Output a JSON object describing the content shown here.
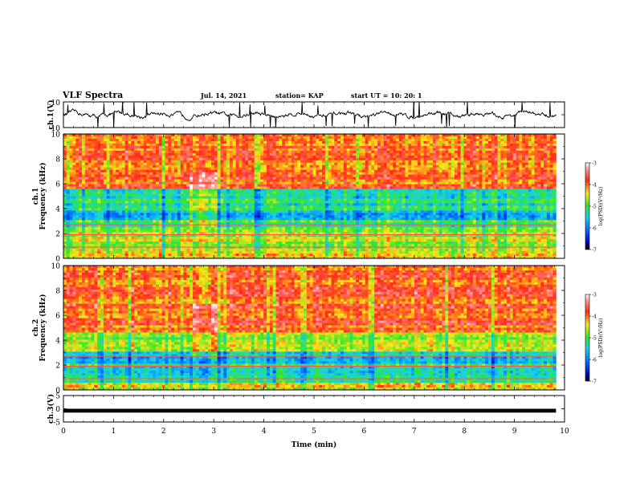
{
  "header": {
    "title": "VLF Spectra",
    "date": "Jul. 14, 2021",
    "station": "station= KAP",
    "start": "start UT = 10: 20: 1"
  },
  "colors": {
    "spectrogram_high": "#ff2a1a",
    "spectrogram_mid": "#ffe61a",
    "spectrogram_low": "#2ee62e",
    "spectrogram_lower": "#1ad2e6",
    "spectrogram_lowest": "#0000c8",
    "axis": "#000000"
  },
  "chart_data": [
    {
      "id": "ch1-waveform",
      "type": "line",
      "ylabel": "ch.1(V)",
      "ylim": [
        -10,
        10
      ],
      "yticks": [
        "10",
        "-10"
      ],
      "xlim": [
        0,
        10
      ],
      "series": [
        {
          "x_range": [
            0,
            9.83
          ],
          "y_mean": 0,
          "y_amplitude": 3.5,
          "spikes_to": 10
        }
      ]
    },
    {
      "id": "ch1-spectrogram",
      "type": "heatmap",
      "ylabel": "ch.1\nFrequency (kHz)",
      "ylim": [
        0,
        10
      ],
      "yticks": [
        "0",
        "2",
        "4",
        "6",
        "8",
        "10"
      ],
      "xlim": [
        0,
        10
      ],
      "data_xlim": [
        0,
        9.83
      ],
      "colorbar": {
        "label": "log(PSD)(V²/Hz)",
        "range": [
          -7,
          -3
        ],
        "ticks": [
          "-3",
          "-4",
          "-5",
          "-6",
          "-7"
        ]
      },
      "bands": [
        {
          "f": [
            0,
            0.5
          ],
          "level": -4.2
        },
        {
          "f": [
            0.5,
            2.3
          ],
          "level": -4.6
        },
        {
          "f": [
            2.3,
            3.1
          ],
          "level": -5.0
        },
        {
          "f": [
            3.1,
            3.8
          ],
          "level": -5.6
        },
        {
          "f": [
            3.8,
            5.5
          ],
          "level": -5.2
        },
        {
          "f": [
            5.5,
            10
          ],
          "level": -3.9
        }
      ]
    },
    {
      "id": "ch2-spectrogram",
      "type": "heatmap",
      "ylabel": "ch.2\nFrequency (kHz)",
      "ylim": [
        0,
        10
      ],
      "yticks": [
        "0",
        "2",
        "4",
        "6",
        "8",
        "10"
      ],
      "xlim": [
        0,
        10
      ],
      "data_xlim": [
        0,
        9.83
      ],
      "colorbar": {
        "label": "log(PSD)(V²/Hz)",
        "range": [
          -7,
          -3
        ],
        "ticks": [
          "-3",
          "-4",
          "-5",
          "-6",
          "-7"
        ]
      },
      "bands": [
        {
          "f": [
            0,
            0.6
          ],
          "level": -4.4
        },
        {
          "f": [
            0.6,
            2.2
          ],
          "level": -5.3
        },
        {
          "f": [
            2.2,
            3.0
          ],
          "level": -5.6
        },
        {
          "f": [
            3.0,
            4.6
          ],
          "level": -4.6
        },
        {
          "f": [
            4.6,
            10
          ],
          "level": -3.9
        }
      ]
    },
    {
      "id": "ch3-signal",
      "type": "line",
      "ylabel": "ch.3(V)",
      "ylim": [
        -5,
        5
      ],
      "yticks": [
        "5",
        "0",
        "-5"
      ],
      "xlabel": "Time (min)",
      "xlim": [
        0,
        10
      ],
      "xticks": [
        "0",
        "1",
        "2",
        "3",
        "4",
        "5",
        "6",
        "7",
        "8",
        "9",
        "10"
      ],
      "series": [
        {
          "x_range": [
            0,
            9.83
          ],
          "y_mean": -0.5,
          "y_amplitude": 0.5
        }
      ]
    }
  ]
}
